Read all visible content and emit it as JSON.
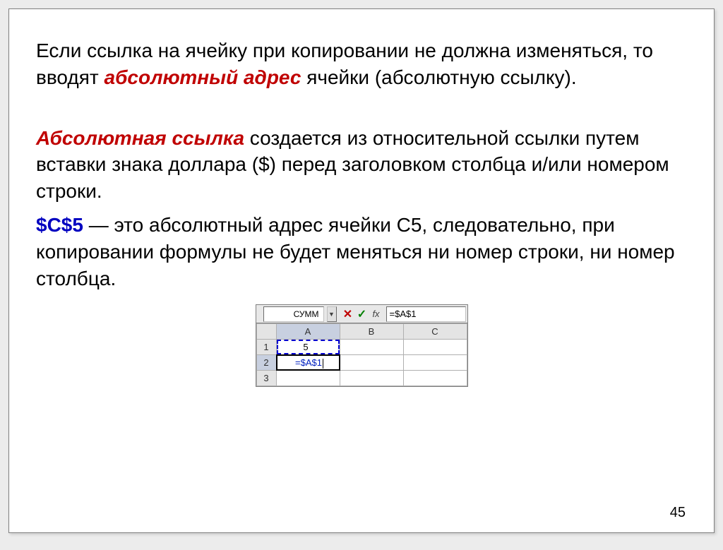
{
  "para1": {
    "t1": "Если ссылка на ячейку при копировании не должна изменяться, то вводят ",
    "term": "абсолютный адрес",
    "t2": " ячейки (абсолютную ссылку)."
  },
  "para2": {
    "term": "Абсолютная ссылка",
    "t1": " создается из относительной ссылки путем вставки знака доллара ($) перед заголовком столбца и/или номером строки."
  },
  "para3": {
    "ref": "$C$5",
    "t1": " — это абсолютный адрес ячейки C5, следовательно, при копировании формулы не будет меняться ни номер строки, ни номер столбца."
  },
  "excel": {
    "namebox": "СУММ",
    "formula": "=$A$1",
    "cols": [
      "A",
      "B",
      "C"
    ],
    "rows": [
      "1",
      "2",
      "3"
    ],
    "a1": "5",
    "a2": "=$A$1"
  },
  "pagenum": "45",
  "colors": {
    "red": "#c00000",
    "blue": "#0000c0"
  }
}
